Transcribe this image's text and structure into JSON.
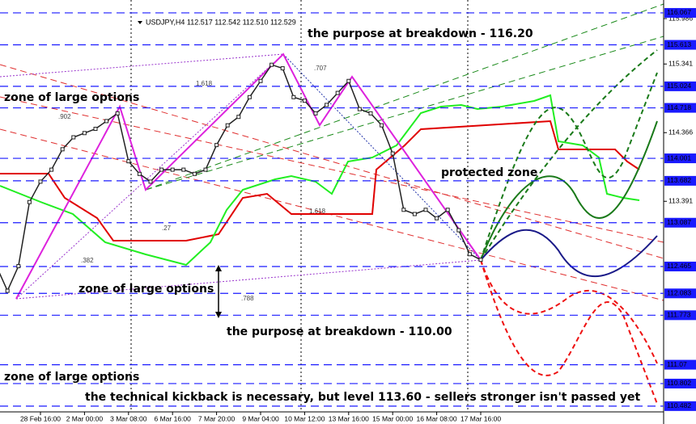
{
  "chart_data": {
    "type": "line",
    "title": "USDJPY,H4  112.517 112.542 112.510 112.529",
    "categories": [
      null,
      null,
      null,
      null,
      "28 Feb 16:00",
      null,
      null,
      null,
      "2 Mar 00:00",
      null,
      null,
      null,
      "3 Mar 08:00",
      null,
      null,
      null,
      "6 Mar 16:00",
      null,
      null,
      null,
      "7 Mar 20:00",
      null,
      null,
      null,
      "9 Mar 04:00",
      null,
      null,
      null,
      "10 Mar 12:00",
      null,
      null,
      null,
      "13 Mar 16:00",
      null,
      null,
      null,
      "15 Mar 00:00",
      null,
      null,
      null,
      "16 Mar 08:00",
      null,
      null,
      null,
      "17 Mar 16:00"
    ],
    "values": [
      112.47,
      112.12,
      112.47,
      113.38,
      113.67,
      113.84,
      114.13,
      114.3,
      114.36,
      114.42,
      114.53,
      114.64,
      113.96,
      113.78,
      113.67,
      113.84,
      113.84,
      113.84,
      113.78,
      113.84,
      114.19,
      114.47,
      114.59,
      114.87,
      115.1,
      115.33,
      115.28,
      114.87,
      114.82,
      114.64,
      114.76,
      114.93,
      115.1,
      114.7,
      114.64,
      114.47,
      114.07,
      113.27,
      113.21,
      113.27,
      113.15,
      113.27,
      112.98,
      112.64,
      112.56
    ],
    "color": "#222222",
    "ylim": [
      110.4,
      116.25
    ],
    "yticks": [
      115.986,
      115.341,
      114.366,
      113.391
    ],
    "levels": [
      116.067,
      115.613,
      115.024,
      114.718,
      114.001,
      113.682,
      113.087,
      112.465,
      112.083,
      111.773,
      111.07,
      110.802,
      110.482
    ],
    "level_color": "#1a1aff",
    "annotations": [
      "the purpose at breakdown - 116.20",
      "zone of large options",
      "protected zone",
      "zone of large options",
      "the purpose at breakdown - 110.00",
      "zone of large options",
      "the technical kickback is necessary, but level 113.60 - sellers stronger isn't passed yet"
    ],
    "fib_labels": [
      ".707",
      "1.618",
      ".902",
      ".382",
      "1.618",
      ".788",
      ".27"
    ]
  }
}
